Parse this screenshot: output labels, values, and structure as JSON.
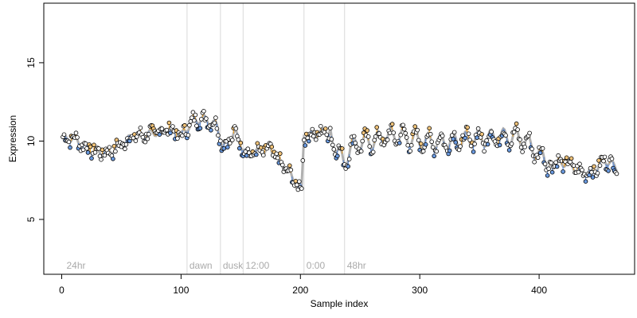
{
  "chart_data": {
    "type": "scatter",
    "title": "",
    "xlabel": "Sample index",
    "ylabel": "Expression",
    "xlim": [
      -15,
      480
    ],
    "ylim": [
      1.5,
      18.8
    ],
    "x_ticks": [
      0,
      100,
      200,
      300,
      400
    ],
    "y_ticks": [
      5,
      10,
      15
    ],
    "grid": false,
    "legend": "none",
    "colors": {
      "fitted_line": "#b0b0b0",
      "residual_positive": "#f0a020",
      "residual_negative": "#4a7fd4",
      "point_fill": "#ffffff",
      "point_stroke": "#000000",
      "point_fill_below": "#6a9ae0",
      "point_fill_above": "#f2c47a",
      "annotation_line": "#d9d9d9",
      "annotation_text": "#aaaaaa"
    },
    "annotations": [
      {
        "x": 2,
        "label": "24hr",
        "line": false
      },
      {
        "x": 105,
        "label": "dawn",
        "line": true
      },
      {
        "x": 133,
        "label": "dusk",
        "line": true
      },
      {
        "x": 152,
        "label": "12:00",
        "line": true
      },
      {
        "x": 203,
        "label": "0:00",
        "line": true
      },
      {
        "x": 237,
        "label": "48hr",
        "line": true
      }
    ],
    "trend_knots": [
      {
        "x": 0,
        "y": 10.1
      },
      {
        "x": 10,
        "y": 10.2
      },
      {
        "x": 20,
        "y": 9.6
      },
      {
        "x": 30,
        "y": 9.3
      },
      {
        "x": 40,
        "y": 9.3
      },
      {
        "x": 50,
        "y": 9.8
      },
      {
        "x": 60,
        "y": 10.3
      },
      {
        "x": 70,
        "y": 10.4
      },
      {
        "x": 80,
        "y": 10.6
      },
      {
        "x": 90,
        "y": 10.8
      },
      {
        "x": 100,
        "y": 10.3
      },
      {
        "x": 110,
        "y": 11.3
      },
      {
        "x": 120,
        "y": 11.4
      },
      {
        "x": 130,
        "y": 11.0
      },
      {
        "x": 135,
        "y": 9.6
      },
      {
        "x": 140,
        "y": 10.0
      },
      {
        "x": 145,
        "y": 10.6
      },
      {
        "x": 150,
        "y": 9.8
      },
      {
        "x": 155,
        "y": 9.2
      },
      {
        "x": 165,
        "y": 9.3
      },
      {
        "x": 175,
        "y": 9.5
      },
      {
        "x": 182,
        "y": 8.7
      },
      {
        "x": 190,
        "y": 8.0
      },
      {
        "x": 196,
        "y": 7.3
      },
      {
        "x": 201,
        "y": 7.0
      },
      {
        "x": 203,
        "y": 10.3
      },
      {
        "x": 215,
        "y": 10.5
      },
      {
        "x": 225,
        "y": 10.6
      },
      {
        "x": 232,
        "y": 9.2
      },
      {
        "x": 236,
        "y": 8.7
      },
      {
        "x": 245,
        "y": 9.8
      },
      {
        "x": 260,
        "y": 10.0
      },
      {
        "x": 280,
        "y": 10.4
      },
      {
        "x": 300,
        "y": 10.0
      },
      {
        "x": 320,
        "y": 9.9
      },
      {
        "x": 340,
        "y": 10.1
      },
      {
        "x": 360,
        "y": 10.2
      },
      {
        "x": 380,
        "y": 10.3
      },
      {
        "x": 390,
        "y": 9.9
      },
      {
        "x": 400,
        "y": 9.1
      },
      {
        "x": 410,
        "y": 8.6
      },
      {
        "x": 425,
        "y": 8.6
      },
      {
        "x": 435,
        "y": 8.0
      },
      {
        "x": 445,
        "y": 8.0
      },
      {
        "x": 455,
        "y": 8.8
      },
      {
        "x": 465,
        "y": 8.3
      }
    ],
    "oscillation": {
      "amplitude": 0.55,
      "period": 10.5,
      "start_x": 225,
      "end_x": 410
    },
    "noise": {
      "amplitude": 0.4,
      "seed": 7
    },
    "n_points": 465
  }
}
